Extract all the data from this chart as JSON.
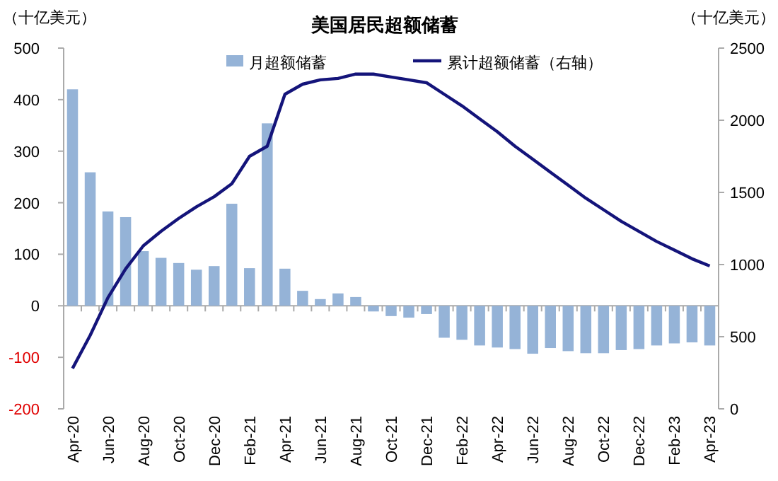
{
  "chart_data": {
    "type": "bar",
    "title": "美国居民超额储蓄",
    "ylabel": "（十亿美元）",
    "y2label": "（十亿美元）",
    "categories": [
      "Apr-20",
      null,
      "Jun-20",
      null,
      "Aug-20",
      null,
      "Oct-20",
      null,
      "Dec-20",
      null,
      "Feb-21",
      null,
      "Apr-21",
      null,
      "Jun-21",
      null,
      "Aug-21",
      null,
      "Oct-21",
      null,
      "Dec-21",
      null,
      "Feb-22",
      null,
      "Apr-22",
      null,
      "Jun-22",
      null,
      "Aug-22",
      null,
      "Oct-22",
      null,
      "Dec-22",
      null,
      "Feb-23",
      null,
      "Apr-23"
    ],
    "series": [
      {
        "name": "月超额储蓄",
        "color": "#95b3d7",
        "values": [
          420,
          259,
          183,
          172,
          106,
          93,
          83,
          70,
          77,
          198,
          73,
          354,
          72,
          29,
          13,
          24,
          17,
          -11,
          -20,
          -23,
          -16,
          -62,
          -66,
          -77,
          -81,
          -84,
          -93,
          -82,
          -88,
          -92,
          -92,
          -86,
          -84,
          -77,
          -73,
          -71,
          -77
        ]
      },
      {
        "name": "累计超额储蓄（右轴）",
        "type": "line",
        "axis": "y2",
        "color": "#14147a",
        "values": [
          280,
          510,
          770,
          970,
          1130,
          1230,
          1320,
          1400,
          1470,
          1560,
          1750,
          1820,
          2180,
          2250,
          2280,
          2290,
          2320,
          2320,
          2300,
          2280,
          2260,
          2180,
          2100,
          2010,
          1920,
          1820,
          1730,
          1640,
          1550,
          1460,
          1380,
          1300,
          1230,
          1160,
          1100,
          1040,
          990
        ]
      }
    ],
    "ylim": [
      -200,
      500
    ],
    "yticks": [
      -200,
      -100,
      0,
      100,
      200,
      300,
      400,
      500
    ],
    "y2lim": [
      0,
      2500
    ],
    "y2ticks": [
      0,
      500,
      1000,
      1500,
      2000,
      2500
    ],
    "legend": "top"
  }
}
